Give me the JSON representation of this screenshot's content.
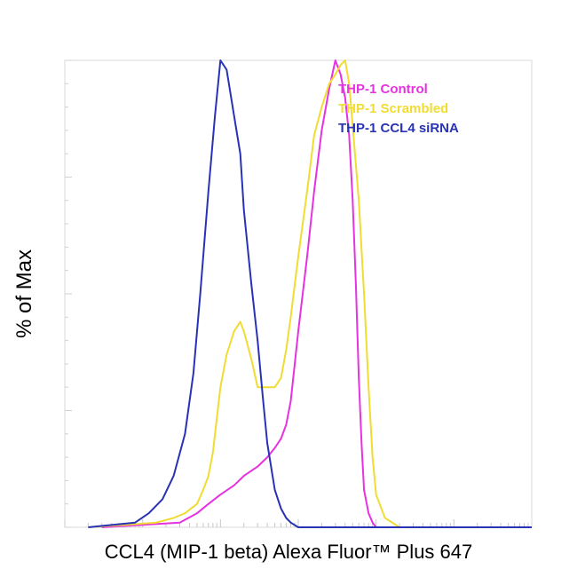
{
  "chart_data": {
    "type": "line",
    "title": "",
    "xlabel": "CCL4 (MIP-1 beta) Alexa Fluor™ Plus 647",
    "ylabel": "% of Max",
    "x_scale": "log",
    "xlim": [
      0.01,
      10000
    ],
    "ylim": [
      0,
      100
    ],
    "grid": false,
    "legend_position": "top-right",
    "series": [
      {
        "name": "THP-1 Control",
        "color": "#e632e0",
        "x": [
          0.03,
          0.3,
          0.5,
          0.7,
          1.0,
          1.5,
          2.0,
          3.0,
          4.0,
          5.0,
          6.0,
          7.0,
          8.0,
          10,
          13,
          16,
          20,
          25,
          30,
          35,
          40,
          45,
          50,
          55,
          60,
          65,
          70,
          80,
          90,
          100,
          130,
          160,
          200,
          300,
          10000
        ],
        "y": [
          0,
          1,
          3,
          5,
          7,
          9,
          11,
          13,
          15,
          17,
          19,
          22,
          27,
          42,
          58,
          72,
          85,
          94,
          100,
          97,
          92,
          84,
          70,
          52,
          32,
          18,
          8,
          3,
          1,
          0,
          0,
          0,
          0,
          0,
          0
        ]
      },
      {
        "name": "THP-1 Scrambled",
        "color": "#f0dc32",
        "x": [
          0.02,
          0.15,
          0.25,
          0.35,
          0.5,
          0.6,
          0.7,
          0.8,
          1.0,
          1.2,
          1.5,
          1.8,
          2.0,
          2.5,
          3.0,
          3.5,
          4.0,
          5.0,
          6.0,
          7.0,
          8.0,
          10,
          13,
          16,
          20,
          25,
          30,
          35,
          40,
          45,
          50,
          60,
          70,
          80,
          90,
          100,
          130,
          200,
          10000
        ],
        "y": [
          0,
          1,
          2,
          3,
          5,
          8,
          11,
          16,
          30,
          37,
          42,
          44,
          42,
          36,
          30,
          30,
          30,
          30,
          32,
          38,
          45,
          58,
          72,
          84,
          90,
          95,
          97,
          99,
          100,
          95,
          86,
          70,
          50,
          30,
          15,
          7,
          2,
          0,
          0
        ]
      },
      {
        "name": "THP-1 CCL4 siRNA",
        "color": "#2832b4",
        "x": [
          0.02,
          0.08,
          0.12,
          0.18,
          0.25,
          0.35,
          0.45,
          0.55,
          0.7,
          0.85,
          1.0,
          1.2,
          1.5,
          1.8,
          2.0,
          2.5,
          3.0,
          3.5,
          4.0,
          5.0,
          6.0,
          7.0,
          8.0,
          10,
          15,
          10000
        ],
        "y": [
          0,
          1,
          3,
          6,
          11,
          20,
          33,
          50,
          72,
          88,
          100,
          98,
          88,
          80,
          68,
          52,
          40,
          28,
          18,
          8,
          4,
          2,
          1,
          0,
          0,
          0
        ]
      }
    ]
  }
}
